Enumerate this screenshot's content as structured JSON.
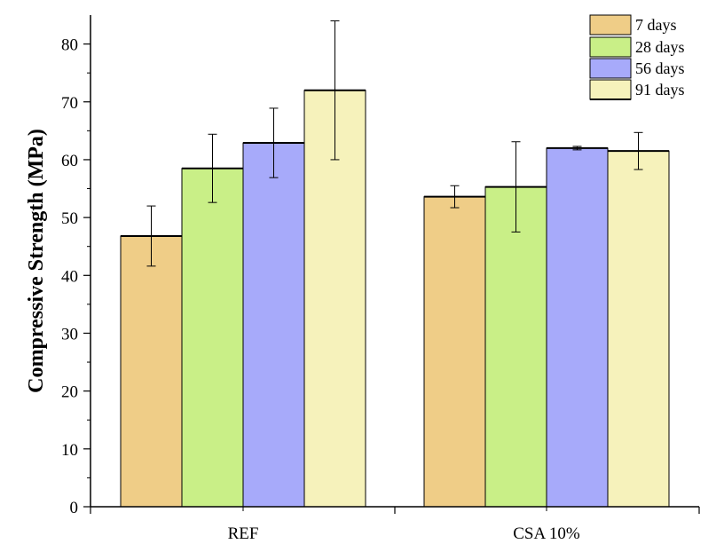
{
  "chart_data": {
    "type": "bar",
    "title": "",
    "xlabel": "",
    "ylabel": "Compressive Strength (MPa)",
    "ylim": [
      0,
      85
    ],
    "yticks": [
      0,
      10,
      20,
      30,
      40,
      50,
      60,
      70,
      80
    ],
    "categories": [
      "REF",
      "CSA 10%"
    ],
    "series": [
      {
        "name": "7 days",
        "values": [
          46.8,
          53.6
        ],
        "errors": [
          5.2,
          1.9
        ],
        "color": "#efcd87"
      },
      {
        "name": "28 days",
        "values": [
          58.5,
          55.3
        ],
        "errors": [
          5.9,
          7.8
        ],
        "color": "#c9ef87"
      },
      {
        "name": "56 days",
        "values": [
          62.9,
          62.0
        ],
        "errors": [
          6.0,
          0.3
        ],
        "color": "#a7aafa"
      },
      {
        "name": "91 days",
        "values": [
          72.0,
          61.5
        ],
        "errors": [
          12.0,
          3.2
        ],
        "color": "#f6f2bb"
      }
    ],
    "legend": {
      "position": "top-right"
    },
    "grid": false
  }
}
